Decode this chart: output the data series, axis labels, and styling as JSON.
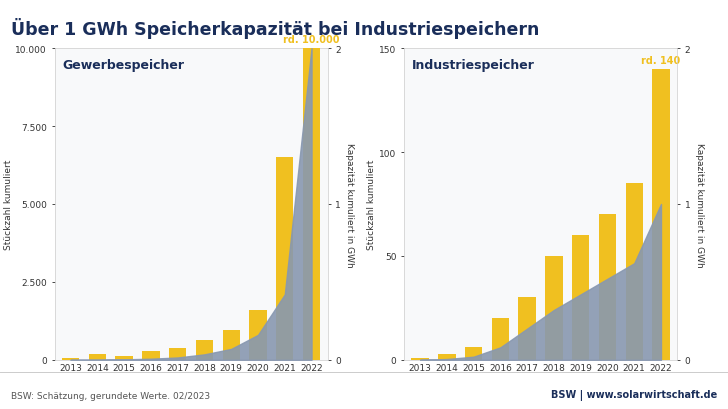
{
  "title": "Über 1 GWh Speicherkapazität bei Industriespeichern",
  "title_color": "#1a2e5a",
  "background_color": "#ffffff",
  "footer_text": "BSW: Schätzung, gerundete Werte. 02/2023",
  "footer_right": "BSW | www.solarwirtschaft.de",
  "years": [
    2013,
    2014,
    2015,
    2016,
    2017,
    2018,
    2019,
    2020,
    2021,
    2022
  ],
  "chart1": {
    "title": "Gewerbespeicher",
    "bar_color": "#f0c020",
    "area_color": "#8898b0",
    "ylabel_left": "Stückzahl kumuliert",
    "ylabel_right": "Kapazität kumuliert in GWh",
    "ylim_left": [
      0,
      10000
    ],
    "ylim_right": [
      0,
      2
    ],
    "yticks_left": [
      0,
      2500,
      5000,
      7500,
      10000
    ],
    "yticks_right": [
      0,
      1,
      2
    ],
    "bar_values": [
      50,
      180,
      130,
      270,
      380,
      650,
      950,
      1600,
      6500,
      10000
    ],
    "area_values": [
      0.0,
      0.0,
      0.003,
      0.007,
      0.015,
      0.035,
      0.07,
      0.16,
      0.42,
      2.0
    ],
    "annotation": "rd. 10.000",
    "annotation_year": 2022
  },
  "chart2": {
    "title": "Industriespeicher",
    "bar_color": "#f0c020",
    "area_color": "#8898b0",
    "ylabel_left": "Stückzahl kumuliert",
    "ylabel_right": "Kapazität kumuliert in GWh",
    "ylim_left": [
      0,
      150
    ],
    "ylim_right": [
      0,
      2
    ],
    "yticks_left": [
      0,
      50,
      100,
      150
    ],
    "yticks_right": [
      0,
      1,
      2
    ],
    "bar_values": [
      1,
      3,
      6,
      20,
      30,
      50,
      60,
      70,
      85,
      140
    ],
    "area_values": [
      0.0,
      0.005,
      0.02,
      0.08,
      0.2,
      0.32,
      0.42,
      0.52,
      0.62,
      1.0
    ],
    "annotation": "rd. 140",
    "annotation_year": 2022
  }
}
